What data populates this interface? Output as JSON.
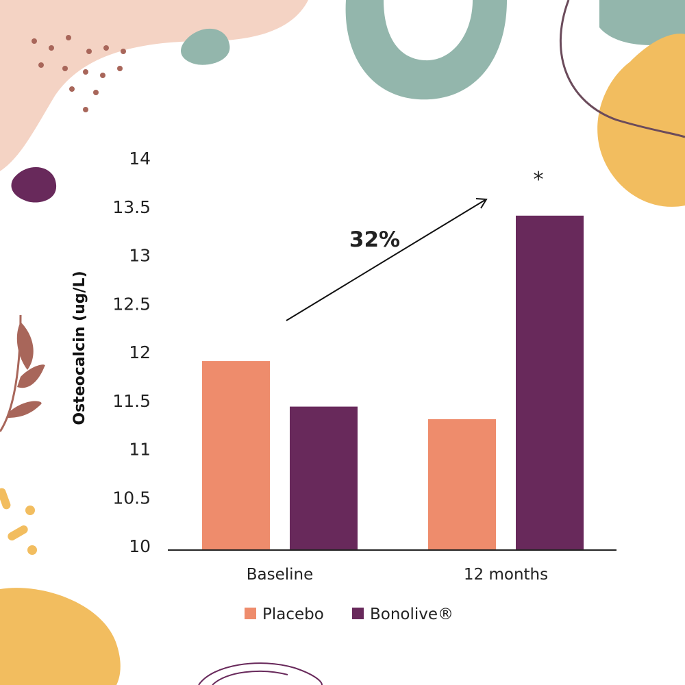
{
  "chart_data": {
    "type": "bar",
    "title": "",
    "xlabel": "",
    "ylabel": "Osteocalcin (ug/L)",
    "ylim": [
      10,
      14
    ],
    "yticks": [
      "10",
      "10.5",
      "11",
      "11.5",
      "12",
      "12.5",
      "13",
      "13.5",
      "14"
    ],
    "categories": [
      "Baseline",
      "12 months"
    ],
    "series": [
      {
        "name": "Placebo",
        "color": "#ee8c6c",
        "values": [
          11.95,
          11.35
        ]
      },
      {
        "name": "Bonolive®",
        "color": "#68295b",
        "values": [
          11.48,
          13.45
        ]
      }
    ],
    "annotations": {
      "increase": "32%",
      "significance": "*"
    },
    "legend_position": "bottom",
    "grid": false
  }
}
